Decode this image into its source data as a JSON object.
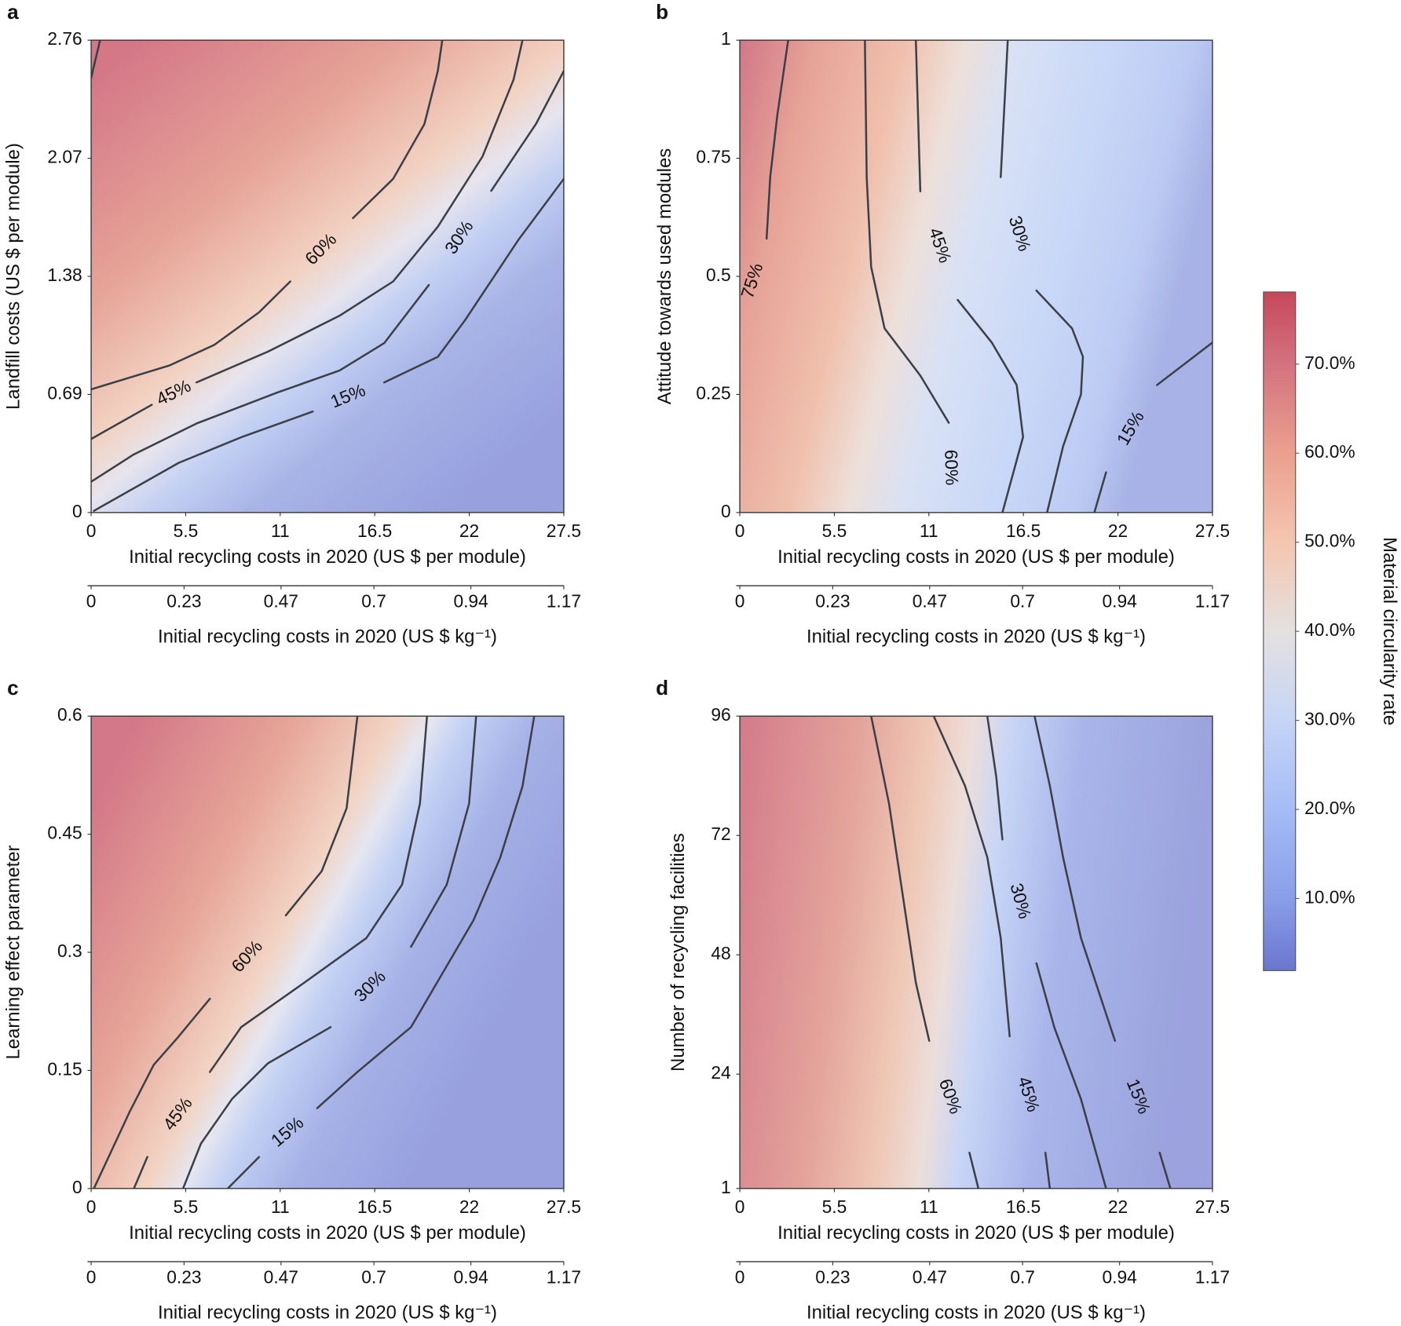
{
  "chart_data": [
    {
      "type": "contour",
      "panel": "a",
      "xlabel": "Initial recycling costs in 2020 (US $ per module)",
      "ylabel": "Landfill costs (US $ per module)",
      "xlim": [
        0,
        27.5
      ],
      "xticks": [
        0,
        5.5,
        11,
        16.5,
        22,
        27.5
      ],
      "ylim": [
        0,
        2.76
      ],
      "yticks": [
        0,
        0.69,
        1.38,
        2.07,
        2.76
      ],
      "x2label": "Initial recycling costs in 2020 (US $ kg⁻¹)",
      "x2lim": [
        0,
        1.17
      ],
      "x2ticks": [
        0,
        0.23,
        0.47,
        0.7,
        0.94,
        1.17
      ],
      "contours": [
        {
          "x": [
            0,
            0.52
          ],
          "y": [
            2.54,
            2.76
          ]
        },
        {
          "label": "60%",
          "x": [
            0,
            4.57,
            7.17,
            9.77,
            11.59,
            null,
            15.23,
            17.57,
            19.39,
            20.17,
            20.43
          ],
          "y": [
            0.72,
            0.86,
            0.98,
            1.17,
            1.35,
            null,
            1.72,
            1.95,
            2.27,
            2.58,
            2.76
          ]
        },
        {
          "label": "45%",
          "x": [
            0,
            3.53,
            null,
            6.13,
            10.29,
            14.45,
            17.57,
            20.17,
            22.77,
            24.58,
            25.1
          ],
          "y": [
            0.43,
            0.63,
            null,
            0.76,
            0.94,
            1.15,
            1.35,
            1.67,
            2.08,
            2.53,
            2.76
          ]
        },
        {
          "label": "30%",
          "x": [
            0,
            2.49,
            6.13,
            10.81,
            14.45,
            17.05,
            19.65,
            null,
            23.28,
            25.88,
            27.5
          ],
          "y": [
            0.18,
            0.34,
            0.52,
            0.7,
            0.83,
            0.99,
            1.33,
            null,
            1.88,
            2.27,
            2.58
          ]
        },
        {
          "label": "15%",
          "x": [
            0.16,
            5.09,
            8.73,
            12.89,
            null,
            17.05,
            20.17,
            21.73,
            24.84,
            27.5
          ],
          "y": [
            0.01,
            0.29,
            0.44,
            0.59,
            null,
            0.76,
            0.91,
            1.12,
            1.59,
            1.95
          ]
        }
      ]
    },
    {
      "type": "contour",
      "panel": "b",
      "xlabel": "Initial recycling costs in 2020 (US $ per module)",
      "ylabel": "Attitude towards used modules",
      "xlim": [
        0,
        27.5
      ],
      "xticks": [
        0,
        5.5,
        11,
        16.5,
        22,
        27.5
      ],
      "ylim": [
        0,
        1
      ],
      "yticks": [
        0,
        0.25,
        0.5,
        0.75,
        1
      ],
      "x2label": "Initial recycling costs in 2020 (US $ kg⁻¹)",
      "x2lim": [
        0,
        1.17
      ],
      "x2ticks": [
        0,
        0.23,
        0.47,
        0.7,
        0.94,
        1.17
      ],
      "contours": [
        {
          "label": "75%",
          "x": [
            2.81,
            2.18,
            1.77,
            1.56,
            null,
            0
          ],
          "y": [
            1,
            0.84,
            0.71,
            0.58,
            null,
            0.4
          ]
        },
        {
          "label": "60%",
          "x": [
            7.28,
            7.38,
            7.64,
            8.42,
            10.5,
            12.16,
            null,
            12.32
          ],
          "y": [
            1,
            0.71,
            0.52,
            0.39,
            0.29,
            0.19,
            null,
            0
          ]
        },
        {
          "label": "45%",
          "x": [
            10.24,
            10.5,
            null,
            12.68,
            14.66,
            16.11,
            16.48,
            15.28
          ],
          "y": [
            1,
            0.68,
            null,
            0.45,
            0.36,
            0.27,
            0.16,
            0
          ]
        },
        {
          "label": "30%",
          "x": [
            15.59,
            15.18,
            null,
            17.26,
            19.33,
            19.96,
            19.85,
            18.81,
            17.88
          ],
          "y": [
            1,
            0.71,
            null,
            0.47,
            0.39,
            0.33,
            0.25,
            0.14,
            0
          ]
        },
        {
          "label": "15%",
          "x": [
            27.5,
            24.27,
            null,
            21.31,
            20.63
          ],
          "y": [
            0.36,
            0.27,
            null,
            0.085,
            0
          ]
        }
      ]
    },
    {
      "type": "contour",
      "panel": "c",
      "xlabel": "Initial recycling costs in 2020 (US $ per module)",
      "ylabel": "Learning effect parameter",
      "xlim": [
        0,
        27.5
      ],
      "xticks": [
        0,
        5.5,
        11,
        16.5,
        22,
        27.5
      ],
      "ylim": [
        0,
        0.6
      ],
      "yticks": [
        0,
        0.15,
        0.3,
        0.45,
        0.6
      ],
      "x2label": "Initial recycling costs in 2020 (US $ kg⁻¹)",
      "x2lim": [
        0,
        1.17
      ],
      "x2ticks": [
        0,
        0.23,
        0.47,
        0.7,
        0.94,
        1.17
      ],
      "contours": [
        {
          "label": "60%",
          "x": [
            15.49,
            14.86,
            13.41,
            11.33,
            null,
            6.91,
            5.09,
            3.64,
            2.23,
            0.16
          ],
          "y": [
            0.6,
            0.483,
            0.403,
            0.347,
            null,
            0.241,
            0.193,
            0.157,
            0.097,
            0
          ]
        },
        {
          "label": "45%",
          "x": [
            19.54,
            19.13,
            18.09,
            16.01,
            12.37,
            8.73,
            6.91,
            null,
            3.27,
            2.49
          ],
          "y": [
            0.6,
            0.489,
            0.386,
            0.318,
            0.261,
            0.205,
            0.148,
            null,
            0.04,
            0
          ]
        },
        {
          "label": "30%",
          "x": [
            22.4,
            21.99,
            20.69,
            18.61,
            null,
            13.93,
            10.29,
            8.21,
            6.39,
            5.35
          ],
          "y": [
            0.6,
            0.489,
            0.386,
            0.307,
            null,
            0.205,
            0.159,
            0.114,
            0.057,
            0
          ]
        },
        {
          "label": "15%",
          "x": [
            25.78,
            25.1,
            23.8,
            22.25,
            18.61,
            15.49,
            13.15,
            null,
            9.77,
            7.95
          ],
          "y": [
            0.6,
            0.511,
            0.42,
            0.341,
            0.205,
            0.148,
            0.102,
            null,
            0.04,
            0
          ]
        }
      ]
    },
    {
      "type": "contour",
      "panel": "d",
      "xlabel": "Initial recycling costs in 2020 (US $ per module)",
      "ylabel": "Number of recycling facilities",
      "xlim": [
        0,
        27.5
      ],
      "xticks": [
        0,
        5.5,
        11,
        16.5,
        22,
        27.5
      ],
      "ylim": [
        1,
        96
      ],
      "yticks": [
        1,
        24,
        48,
        72,
        96
      ],
      "x2label": "Initial recycling costs in 2020 (US $ kg⁻¹)",
      "x2lim": [
        0,
        1.17
      ],
      "x2ticks": [
        0,
        0.23,
        0.47,
        0.7,
        0.94,
        1.17
      ],
      "contours": [
        {
          "label": "60%",
          "x": [
            7.64,
            8.68,
            9.46,
            10.24,
            11.02,
            null,
            13.36,
            13.88
          ],
          "y": [
            96,
            78.4,
            60.4,
            42.4,
            30.7,
            null,
            8.2,
            1
          ]
        },
        {
          "label": "45%",
          "x": [
            11.28,
            13.1,
            14.4,
            15.18,
            15.7,
            null,
            17.78,
            18.04
          ],
          "y": [
            96,
            82,
            67.6,
            51.4,
            31.6,
            null,
            8.2,
            1
          ]
        },
        {
          "label": "30%",
          "x": [
            14.4,
            14.92,
            15.28,
            null,
            17.26,
            18.3,
            19.85,
            21.31
          ],
          "y": [
            96,
            83.8,
            71.2,
            null,
            46.3,
            33.4,
            19,
            1
          ]
        },
        {
          "label": "15%",
          "x": [
            17.15,
            18.04,
            18.81,
            19.85,
            21.83,
            null,
            24.43,
            25.05
          ],
          "y": [
            96,
            82,
            67.6,
            51.4,
            30.7,
            null,
            8.2,
            1
          ]
        }
      ]
    }
  ],
  "colorbar": {
    "title": "Material circularity rate",
    "clim": [
      1.9,
      78.1
    ],
    "ticks": [
      {
        "value": 10,
        "label": "10.0%"
      },
      {
        "value": 20,
        "label": "20.0%"
      },
      {
        "value": 30,
        "label": "30.0%"
      },
      {
        "value": 40,
        "label": "40.0%"
      },
      {
        "value": 50,
        "label": "50.0%"
      },
      {
        "value": 60,
        "label": "60.0%"
      },
      {
        "value": 70,
        "label": "70.0%"
      }
    ]
  }
}
